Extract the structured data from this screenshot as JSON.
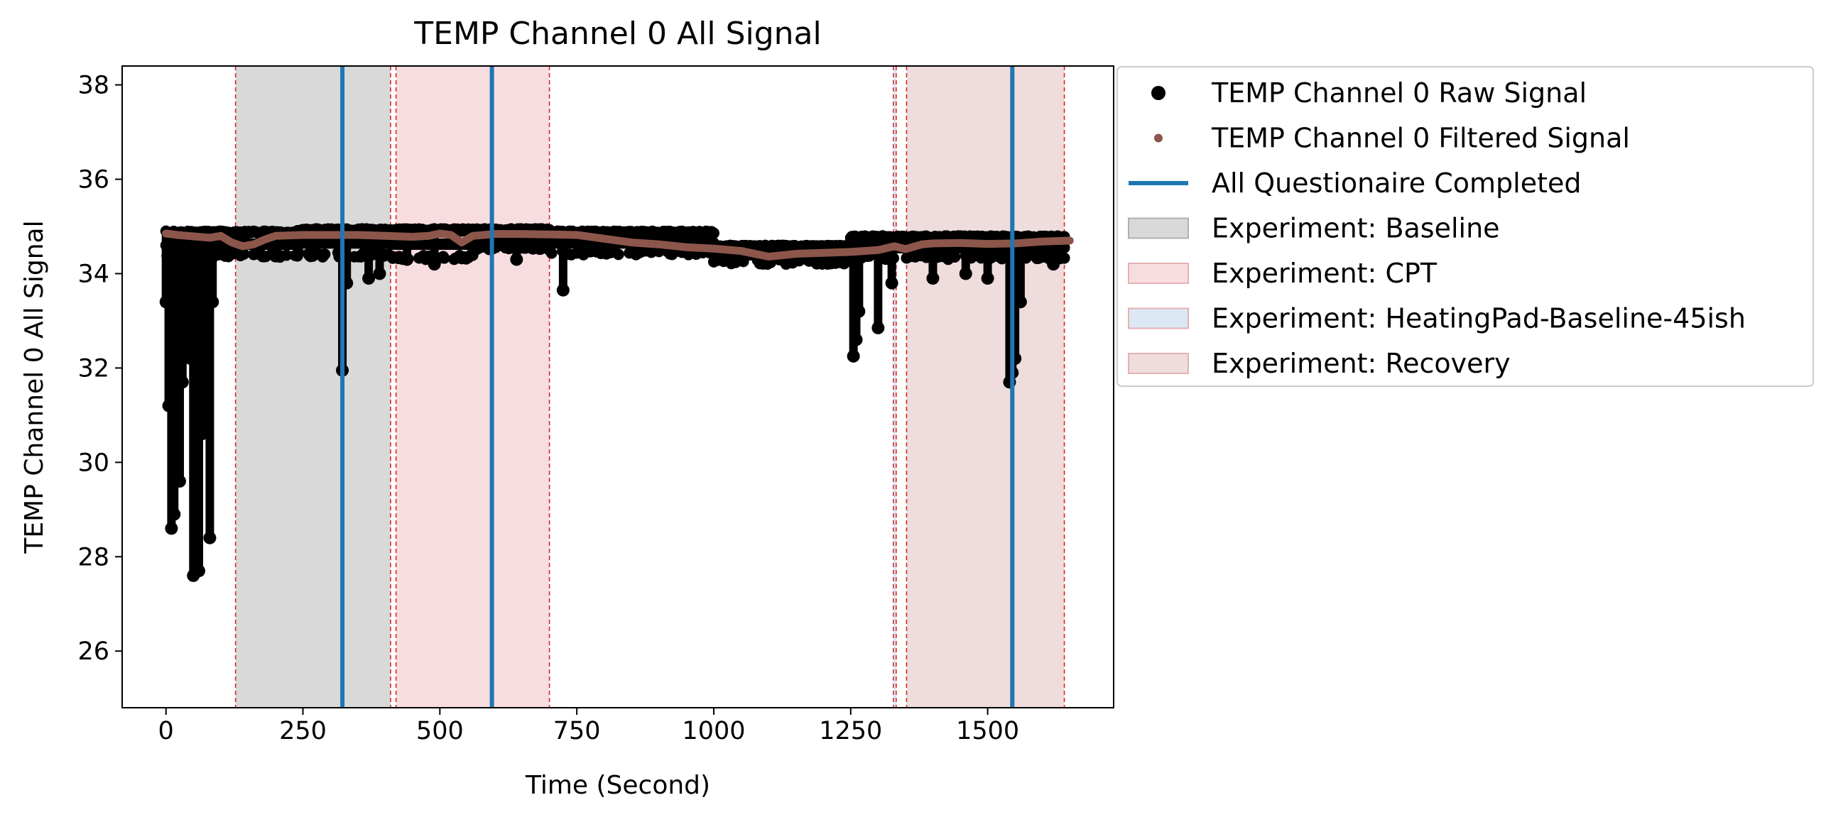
{
  "chart_data": {
    "type": "scatter",
    "title": "TEMP Channel 0 All Signal",
    "xlabel": "Time (Second)",
    "ylabel": "TEMP Channel 0 All Signal",
    "xlim": [
      -80,
      1730
    ],
    "ylim": [
      24.8,
      38.4
    ],
    "xticks": [
      0,
      250,
      500,
      750,
      1000,
      1250,
      1500
    ],
    "yticks": [
      26,
      28,
      30,
      32,
      34,
      36,
      38
    ],
    "grid": false,
    "legend_position": "outside-top-right",
    "legend": [
      {
        "label": "TEMP Channel 0 Raw Signal",
        "kind": "marker-large",
        "color": "#000000"
      },
      {
        "label": "TEMP Channel 0 Filtered Signal",
        "kind": "marker-small",
        "color": "#8c564b"
      },
      {
        "label": "All Questionaire Completed",
        "kind": "line",
        "color": "#1f77b4"
      },
      {
        "label": "Experiment: Baseline",
        "kind": "patch",
        "color": "#d9d9d9"
      },
      {
        "label": "Experiment: CPT",
        "kind": "patch",
        "color": "#f8dde0"
      },
      {
        "label": "Experiment: HeatingPad-Baseline-45ish",
        "kind": "patch",
        "color": "#dce8f3"
      },
      {
        "label": "Experiment: Recovery",
        "kind": "patch",
        "color": "#efdcdc"
      }
    ],
    "experiment_regions": [
      {
        "name": "Baseline",
        "start": 127,
        "end": 410,
        "color": "#d9d9d9"
      },
      {
        "name": "CPT",
        "start": 420,
        "end": 700,
        "color": "#f8dde0"
      },
      {
        "name": "HeatingPad-Baseline-45ish",
        "start": 1328,
        "end": 1333,
        "color": "#dce8f3"
      },
      {
        "name": "Recovery",
        "start": 1352,
        "end": 1640,
        "color": "#efdcdc"
      }
    ],
    "region_boundaries": [
      127,
      410,
      420,
      700,
      1328,
      1333,
      1352,
      1640
    ],
    "questionnaire_completed": [
      322,
      595,
      1545
    ],
    "series": [
      {
        "name": "TEMP Channel 0 Filtered Signal",
        "color": "#8c564b",
        "x": [
          0,
          20,
          40,
          60,
          80,
          100,
          120,
          140,
          160,
          180,
          200,
          250,
          300,
          350,
          400,
          450,
          480,
          500,
          520,
          540,
          560,
          600,
          650,
          700,
          750,
          800,
          850,
          900,
          950,
          1000,
          1050,
          1100,
          1150,
          1200,
          1250,
          1300,
          1330,
          1350,
          1380,
          1400,
          1450,
          1500,
          1550,
          1600,
          1650
        ],
        "y": [
          34.85,
          34.82,
          34.8,
          34.78,
          34.76,
          34.8,
          34.66,
          34.58,
          34.62,
          34.72,
          34.8,
          34.82,
          34.82,
          34.82,
          34.8,
          34.78,
          34.8,
          34.85,
          34.82,
          34.66,
          34.8,
          34.84,
          34.84,
          34.83,
          34.82,
          34.74,
          34.66,
          34.62,
          34.56,
          34.53,
          34.48,
          34.36,
          34.42,
          34.44,
          34.46,
          34.5,
          34.58,
          34.52,
          34.62,
          34.64,
          34.65,
          34.63,
          34.64,
          34.68,
          34.7
        ]
      }
    ],
    "raw_signal": {
      "name": "TEMP Channel 0 Raw Signal",
      "color": "#000000",
      "baseline_band": [
        {
          "x": [
            0,
            80
          ],
          "y": [
            34.3,
            34.9
          ]
        },
        {
          "x": [
            80,
            240
          ],
          "y": [
            34.35,
            34.9
          ]
        },
        {
          "x": [
            240,
            410
          ],
          "y": [
            34.35,
            34.95
          ]
        },
        {
          "x": [
            410,
            560
          ],
          "y": [
            34.3,
            34.95
          ]
        },
        {
          "x": [
            560,
            700
          ],
          "y": [
            34.5,
            34.95
          ]
        },
        {
          "x": [
            700,
            1000
          ],
          "y": [
            34.4,
            34.9
          ]
        },
        {
          "x": [
            1000,
            1250
          ],
          "y": [
            34.2,
            34.6
          ]
        },
        {
          "x": [
            1250,
            1640
          ],
          "y": [
            34.3,
            34.8
          ]
        }
      ],
      "excursions": [
        {
          "x": 0,
          "min": 33.4
        },
        {
          "x": 5,
          "min": 31.2
        },
        {
          "x": 10,
          "min": 28.6
        },
        {
          "x": 15,
          "min": 28.9
        },
        {
          "x": 20,
          "min": 30.3
        },
        {
          "x": 25,
          "min": 29.6
        },
        {
          "x": 30,
          "min": 31.7
        },
        {
          "x": 35,
          "min": 33.2
        },
        {
          "x": 40,
          "min": 33.8
        },
        {
          "x": 45,
          "min": 32.2
        },
        {
          "x": 50,
          "min": 27.6
        },
        {
          "x": 55,
          "min": 28.8
        },
        {
          "x": 60,
          "min": 27.7
        },
        {
          "x": 65,
          "min": 30.6
        },
        {
          "x": 70,
          "min": 32.4
        },
        {
          "x": 75,
          "min": 31.9
        },
        {
          "x": 80,
          "min": 28.4
        },
        {
          "x": 85,
          "min": 33.4
        },
        {
          "x": 322,
          "min": 31.95
        },
        {
          "x": 330,
          "min": 33.8
        },
        {
          "x": 370,
          "min": 33.9
        },
        {
          "x": 390,
          "min": 34.0
        },
        {
          "x": 440,
          "min": 34.3
        },
        {
          "x": 490,
          "min": 34.2
        },
        {
          "x": 640,
          "min": 34.3
        },
        {
          "x": 725,
          "min": 33.65
        },
        {
          "x": 1255,
          "min": 32.25
        },
        {
          "x": 1260,
          "min": 32.6
        },
        {
          "x": 1265,
          "min": 33.2
        },
        {
          "x": 1300,
          "min": 32.85
        },
        {
          "x": 1325,
          "min": 33.8
        },
        {
          "x": 1400,
          "min": 33.9
        },
        {
          "x": 1460,
          "min": 34.0
        },
        {
          "x": 1500,
          "min": 33.9
        },
        {
          "x": 1540,
          "min": 31.7
        },
        {
          "x": 1545,
          "min": 31.9
        },
        {
          "x": 1550,
          "min": 32.2
        },
        {
          "x": 1560,
          "min": 33.4
        },
        {
          "x": 1620,
          "min": 34.2
        }
      ]
    }
  }
}
